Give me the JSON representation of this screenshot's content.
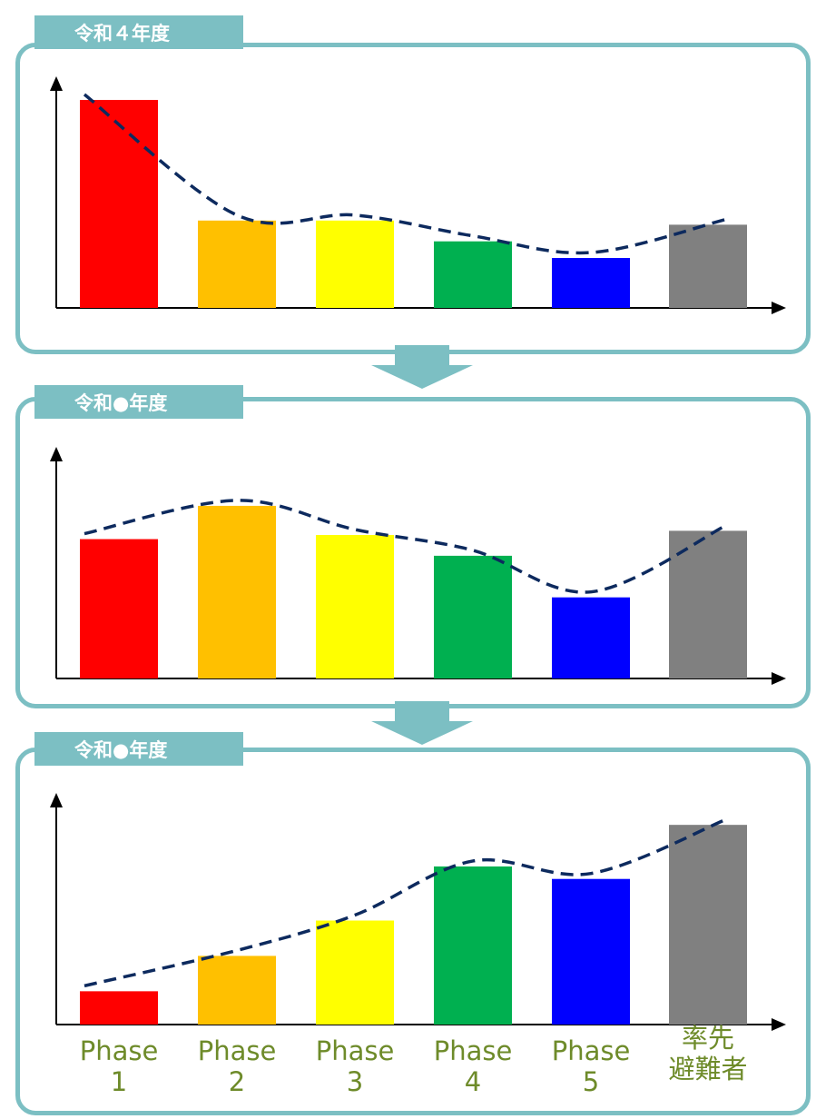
{
  "colors": {
    "frame": "#7cbfc3",
    "trend": "#0d2a5e",
    "label": "#6e8b2a",
    "bars": [
      "#ff0000",
      "#ffc000",
      "#ffff00",
      "#00b050",
      "#0000ff",
      "#808080"
    ]
  },
  "categories": [
    "Phase\n1",
    "Phase\n2",
    "Phase\n3",
    "Phase\n4",
    "Phase\n5",
    "率先\n避難者"
  ],
  "chart_data": [
    {
      "type": "bar",
      "title": "令和４年度",
      "categories": [
        "Phase 1",
        "Phase 2",
        "Phase 3",
        "Phase 4",
        "Phase 5",
        "率先避難者"
      ],
      "values": [
        100,
        42,
        42,
        32,
        24,
        40
      ],
      "trend": "dashed-curve",
      "axis_labels": "none"
    },
    {
      "type": "bar",
      "title": "令和●年度",
      "categories": [
        "Phase 1",
        "Phase 2",
        "Phase 3",
        "Phase 4",
        "Phase 5",
        "率先避難者"
      ],
      "values": [
        67,
        83,
        69,
        59,
        39,
        71
      ],
      "trend": "dashed-curve",
      "axis_labels": "none"
    },
    {
      "type": "bar",
      "title": "令和●年度",
      "categories": [
        "Phase 1",
        "Phase 2",
        "Phase 3",
        "Phase 4",
        "Phase 5",
        "率先避難者"
      ],
      "values": [
        16,
        33,
        50,
        76,
        70,
        96
      ],
      "trend": "dashed-curve",
      "axis_labels": "none"
    }
  ]
}
